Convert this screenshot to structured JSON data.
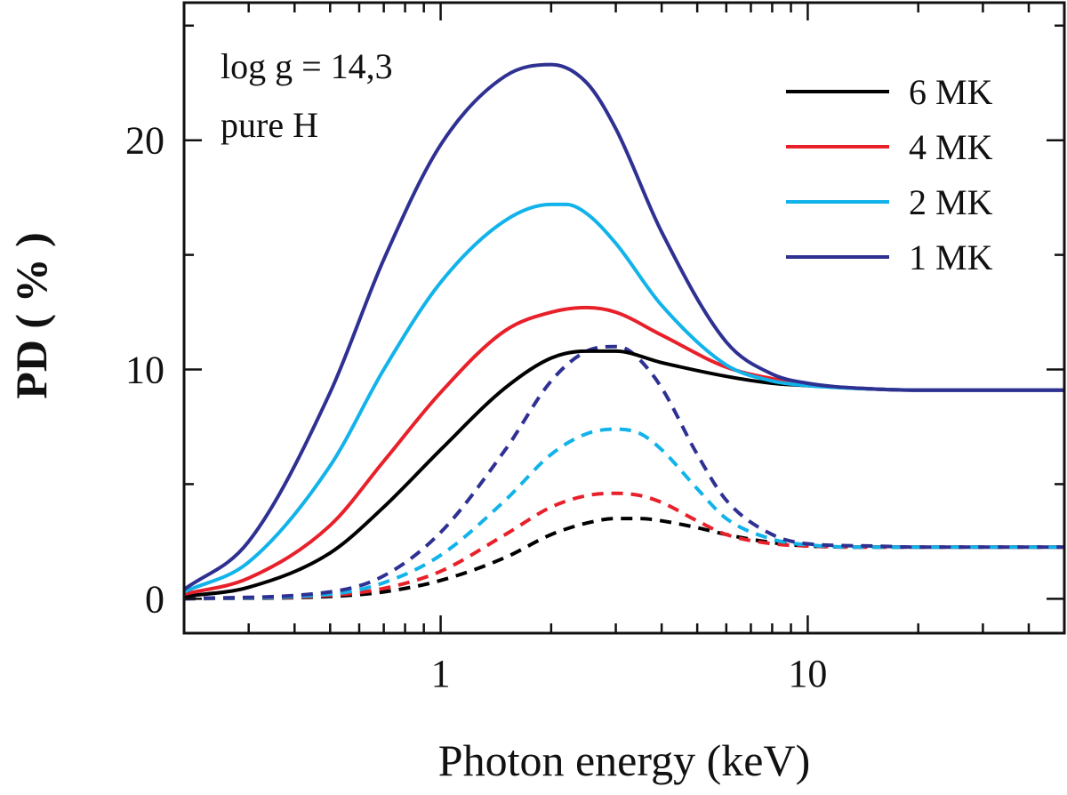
{
  "chart_data": {
    "type": "line",
    "title": "",
    "xlabel": "Photon energy (keV)",
    "ylabel": "PD ( % )",
    "xscale": "log",
    "xlim": [
      0.2,
      50
    ],
    "ylim": [
      -1.5,
      26
    ],
    "xticks": [
      {
        "value": 1,
        "label": "1"
      },
      {
        "value": 10,
        "label": "10"
      }
    ],
    "yticks": [
      {
        "value": 0,
        "label": "0"
      },
      {
        "value": 10,
        "label": "10"
      },
      {
        "value": 20,
        "label": "20"
      }
    ],
    "annotations": [
      "log g = 14,3",
      "pure H"
    ],
    "legend_position": "top-right",
    "series": [
      {
        "name": "6 MK",
        "color": "#000000",
        "style": "solid",
        "x": [
          0.2,
          0.3,
          0.5,
          0.7,
          1.0,
          1.5,
          2.0,
          2.5,
          3.0,
          4.0,
          6.0,
          8.0,
          10,
          15,
          20,
          50
        ],
        "y": [
          0.1,
          0.5,
          2.0,
          4.0,
          6.5,
          9.2,
          10.5,
          10.8,
          10.8,
          10.3,
          9.7,
          9.4,
          9.3,
          9.15,
          9.1,
          9.1
        ]
      },
      {
        "name": "4 MK",
        "color": "#e8202a",
        "style": "solid",
        "x": [
          0.2,
          0.3,
          0.5,
          0.7,
          1.0,
          1.5,
          2.0,
          2.5,
          3.0,
          4.0,
          6.0,
          8.0,
          10,
          15,
          20,
          50
        ],
        "y": [
          0.2,
          0.9,
          3.2,
          6.0,
          9.0,
          11.7,
          12.5,
          12.7,
          12.5,
          11.5,
          10.1,
          9.6,
          9.35,
          9.15,
          9.1,
          9.1
        ]
      },
      {
        "name": "2 MK",
        "color": "#12b3ea",
        "style": "solid",
        "x": [
          0.2,
          0.3,
          0.5,
          0.7,
          1.0,
          1.5,
          2.0,
          2.2,
          2.5,
          3.0,
          4.0,
          6.0,
          8.0,
          10,
          15,
          20,
          50
        ],
        "y": [
          0.3,
          1.6,
          5.8,
          10.0,
          13.8,
          16.5,
          17.2,
          17.2,
          16.8,
          15.5,
          12.8,
          10.2,
          9.5,
          9.3,
          9.15,
          9.1,
          9.1
        ]
      },
      {
        "name": "1 MK",
        "color": "#2e3192",
        "style": "solid",
        "x": [
          0.2,
          0.3,
          0.5,
          0.7,
          1.0,
          1.5,
          2.0,
          2.5,
          3.0,
          4.0,
          6.0,
          8.0,
          10,
          15,
          20,
          50
        ],
        "y": [
          0.4,
          2.5,
          9.0,
          14.8,
          19.8,
          22.8,
          23.3,
          22.5,
          20.5,
          16.0,
          11.2,
          9.8,
          9.4,
          9.15,
          9.1,
          9.1
        ]
      },
      {
        "name": "6 MK (dashed)",
        "color": "#000000",
        "style": "dashed",
        "x": [
          0.2,
          0.5,
          0.7,
          1.0,
          1.5,
          2.0,
          2.5,
          3.0,
          3.5,
          4.0,
          5.0,
          6.0,
          8.0,
          10,
          15,
          20,
          50
        ],
        "y": [
          0.0,
          0.1,
          0.3,
          0.8,
          1.8,
          2.8,
          3.3,
          3.5,
          3.5,
          3.4,
          3.1,
          2.8,
          2.45,
          2.3,
          2.25,
          2.25,
          2.25
        ]
      },
      {
        "name": "4 MK (dashed)",
        "color": "#e8202a",
        "style": "dashed",
        "x": [
          0.2,
          0.5,
          0.7,
          1.0,
          1.5,
          2.0,
          2.5,
          3.0,
          3.5,
          4.0,
          5.0,
          6.0,
          8.0,
          10,
          15,
          20,
          50
        ],
        "y": [
          0.0,
          0.15,
          0.45,
          1.2,
          2.8,
          4.0,
          4.5,
          4.6,
          4.5,
          4.2,
          3.4,
          2.8,
          2.4,
          2.3,
          2.25,
          2.25,
          2.25
        ]
      },
      {
        "name": "2 MK (dashed)",
        "color": "#12b3ea",
        "style": "dashed",
        "x": [
          0.2,
          0.5,
          0.7,
          1.0,
          1.5,
          2.0,
          2.5,
          3.0,
          3.5,
          4.0,
          5.0,
          6.0,
          8.0,
          10,
          15,
          20,
          50
        ],
        "y": [
          0.0,
          0.2,
          0.7,
          1.9,
          4.3,
          6.3,
          7.2,
          7.4,
          7.2,
          6.5,
          4.8,
          3.5,
          2.6,
          2.35,
          2.25,
          2.25,
          2.25
        ]
      },
      {
        "name": "1 MK (dashed)",
        "color": "#2e3192",
        "style": "dashed",
        "x": [
          0.2,
          0.5,
          0.7,
          1.0,
          1.5,
          2.0,
          2.5,
          3.0,
          3.2,
          3.5,
          4.0,
          5.0,
          6.0,
          8.0,
          10,
          15,
          20,
          50
        ],
        "y": [
          0.0,
          0.3,
          1.0,
          2.9,
          6.5,
          9.5,
          10.8,
          11.0,
          10.9,
          10.4,
          9.2,
          6.3,
          4.3,
          2.8,
          2.4,
          2.3,
          2.25,
          2.25
        ]
      }
    ],
    "legend": [
      {
        "label": "6 MK",
        "color": "#000000"
      },
      {
        "label": "4 MK",
        "color": "#e8202a"
      },
      {
        "label": "2 MK",
        "color": "#12b3ea"
      },
      {
        "label": "1 MK",
        "color": "#2e3192"
      }
    ]
  }
}
